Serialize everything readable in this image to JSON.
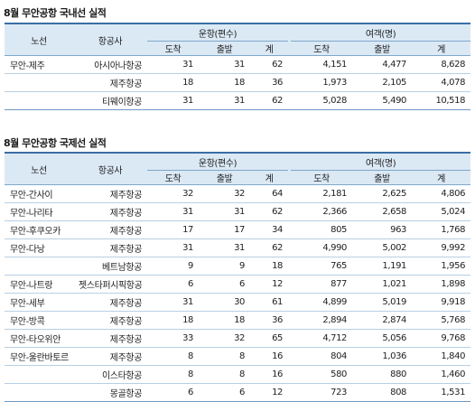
{
  "domestic": {
    "title": "8월 무안공항 국내선 실적",
    "headers": {
      "route": "노선",
      "airline": "항공사",
      "flights_group": "운항(편수)",
      "passengers_group": "여객(명)",
      "arrive": "도착",
      "depart": "출발",
      "total": "계"
    },
    "rows": [
      {
        "route": "무안-제주",
        "airline": "아시아나항공",
        "f_arr": "31",
        "f_dep": "31",
        "f_tot": "62",
        "p_arr": "4,151",
        "p_dep": "4,477",
        "p_tot": "8,628"
      },
      {
        "route": "",
        "airline": "제주항공",
        "f_arr": "18",
        "f_dep": "18",
        "f_tot": "36",
        "p_arr": "1,973",
        "p_dep": "2,105",
        "p_tot": "4,078"
      },
      {
        "route": "",
        "airline": "티웨이항공",
        "f_arr": "31",
        "f_dep": "31",
        "f_tot": "62",
        "p_arr": "5,028",
        "p_dep": "5,490",
        "p_tot": "10,518"
      }
    ]
  },
  "international": {
    "title": "8월 무안공항 국제선 실적",
    "headers": {
      "route": "노선",
      "airline": "항공사",
      "flights_group": "운항(편수)",
      "passengers_group": "여객(명)",
      "arrive": "도착",
      "depart": "출발",
      "total": "계"
    },
    "rows": [
      {
        "route": "무안-간사이",
        "airline": "제주항공",
        "f_arr": "32",
        "f_dep": "32",
        "f_tot": "64",
        "p_arr": "2,181",
        "p_dep": "2,625",
        "p_tot": "4,806"
      },
      {
        "route": "무안-나리타",
        "airline": "제주항공",
        "f_arr": "31",
        "f_dep": "31",
        "f_tot": "62",
        "p_arr": "2,366",
        "p_dep": "2,658",
        "p_tot": "5,024"
      },
      {
        "route": "무안-후쿠오카",
        "airline": "제주항공",
        "f_arr": "17",
        "f_dep": "17",
        "f_tot": "34",
        "p_arr": "805",
        "p_dep": "963",
        "p_tot": "1,768"
      },
      {
        "route": "무안-다낭",
        "airline": "제주항공",
        "f_arr": "31",
        "f_dep": "31",
        "f_tot": "62",
        "p_arr": "4,990",
        "p_dep": "5,002",
        "p_tot": "9,992"
      },
      {
        "route": "",
        "airline": "베트남항공",
        "f_arr": "9",
        "f_dep": "9",
        "f_tot": "18",
        "p_arr": "765",
        "p_dep": "1,191",
        "p_tot": "1,956"
      },
      {
        "route": "무안-나트랑",
        "airline": "젯스타퍼시픽항공",
        "f_arr": "6",
        "f_dep": "6",
        "f_tot": "12",
        "p_arr": "877",
        "p_dep": "1,021",
        "p_tot": "1,898"
      },
      {
        "route": "무안-세부",
        "airline": "제주항공",
        "f_arr": "31",
        "f_dep": "30",
        "f_tot": "61",
        "p_arr": "4,899",
        "p_dep": "5,019",
        "p_tot": "9,918"
      },
      {
        "route": "무안-방콕",
        "airline": "제주항공",
        "f_arr": "18",
        "f_dep": "18",
        "f_tot": "36",
        "p_arr": "2,894",
        "p_dep": "2,874",
        "p_tot": "5,768"
      },
      {
        "route": "무안-타오위안",
        "airline": "제주항공",
        "f_arr": "33",
        "f_dep": "32",
        "f_tot": "65",
        "p_arr": "4,712",
        "p_dep": "5,056",
        "p_tot": "9,768"
      },
      {
        "route": "무안-울란바토르",
        "airline": "제주항공",
        "f_arr": "8",
        "f_dep": "8",
        "f_tot": "16",
        "p_arr": "804",
        "p_dep": "1,036",
        "p_tot": "1,840"
      },
      {
        "route": "",
        "airline": "이스타항공",
        "f_arr": "8",
        "f_dep": "8",
        "f_tot": "16",
        "p_arr": "580",
        "p_dep": "880",
        "p_tot": "1,460"
      },
      {
        "route": "",
        "airline": "몽골항공",
        "f_arr": "6",
        "f_dep": "6",
        "f_tot": "12",
        "p_arr": "723",
        "p_dep": "808",
        "p_tot": "1,531"
      }
    ]
  }
}
